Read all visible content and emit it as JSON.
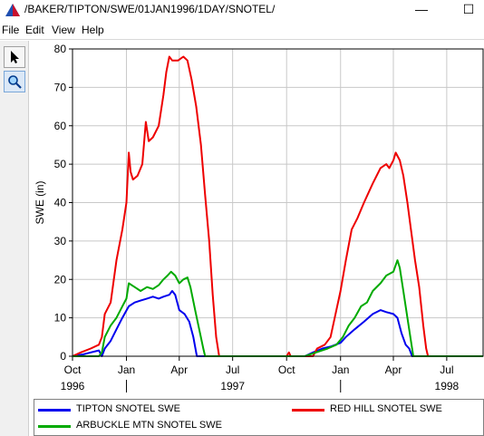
{
  "window": {
    "title": "/BAKER/TIPTON/SWE/01JAN1996/1DAY/SNOTEL/",
    "minimize_glyph": "—",
    "maximize_glyph": "☐"
  },
  "menu": [
    "File",
    "Edit",
    "View",
    "Help"
  ],
  "toolbar": {
    "tools": [
      {
        "icon": "pointer-arrow-icon",
        "active": false
      },
      {
        "icon": "zoom-magnifier-icon",
        "active": true
      }
    ]
  },
  "colors": {
    "tipton": "#0000ee",
    "red_hill": "#ee0000",
    "arbuckle": "#00aa00",
    "grid": "#c8c8c8"
  },
  "chart_data": {
    "type": "line",
    "ylabel": "SWE (in)",
    "ylim": [
      0,
      80
    ],
    "yticks": [
      0,
      10,
      20,
      30,
      40,
      50,
      60,
      70,
      80
    ],
    "xlim": [
      "1996-10-01",
      "1998-09-01"
    ],
    "x_major_ticks": [
      {
        "date": "1996-10-01",
        "label": "Oct"
      },
      {
        "date": "1997-01-01",
        "label": "Jan"
      },
      {
        "date": "1997-04-01",
        "label": "Apr"
      },
      {
        "date": "1997-07-01",
        "label": "Jul"
      },
      {
        "date": "1997-10-01",
        "label": "Oct"
      },
      {
        "date": "1998-01-01",
        "label": "Jan"
      },
      {
        "date": "1998-04-01",
        "label": "Apr"
      },
      {
        "date": "1998-07-01",
        "label": "Jul"
      }
    ],
    "x_year_labels": [
      {
        "date": "1996-10-01",
        "label": "1996"
      },
      {
        "date": "1997-07-01",
        "label": "1997"
      },
      {
        "date": "1998-07-01",
        "label": "1998"
      }
    ],
    "x_year_dividers": [
      "1997-01-01",
      "1998-01-01"
    ],
    "grid": true,
    "legend_position": "bottom",
    "series": [
      {
        "name": "TIPTON SNOTEL SWE",
        "color_key": "tipton",
        "points": [
          [
            "1996-10-01",
            0
          ],
          [
            "1996-10-20",
            0.5
          ],
          [
            "1996-11-01",
            1
          ],
          [
            "1996-11-15",
            1.5
          ],
          [
            "1996-11-20",
            0
          ],
          [
            "1996-11-25",
            2
          ],
          [
            "1996-12-05",
            4
          ],
          [
            "1996-12-15",
            7
          ],
          [
            "1996-12-25",
            10
          ],
          [
            "1997-01-05",
            13
          ],
          [
            "1997-01-15",
            14
          ],
          [
            "1997-01-25",
            14.5
          ],
          [
            "1997-02-05",
            15
          ],
          [
            "1997-02-15",
            15.5
          ],
          [
            "1997-02-25",
            15
          ],
          [
            "1997-03-05",
            15.5
          ],
          [
            "1997-03-15",
            16
          ],
          [
            "1997-03-20",
            17
          ],
          [
            "1997-03-25",
            16
          ],
          [
            "1997-04-01",
            12
          ],
          [
            "1997-04-10",
            11
          ],
          [
            "1997-04-18",
            9
          ],
          [
            "1997-04-25",
            5
          ],
          [
            "1997-05-01",
            0
          ],
          [
            "1997-10-25",
            0
          ],
          [
            "1997-11-01",
            0
          ],
          [
            "1997-11-15",
            1
          ],
          [
            "1997-12-01",
            2
          ],
          [
            "1997-12-15",
            2.5
          ],
          [
            "1998-01-01",
            3.5
          ],
          [
            "1998-01-10",
            5
          ],
          [
            "1998-01-25",
            7
          ],
          [
            "1998-02-10",
            9
          ],
          [
            "1998-02-25",
            11
          ],
          [
            "1998-03-10",
            12
          ],
          [
            "1998-03-20",
            11.5
          ],
          [
            "1998-04-01",
            11
          ],
          [
            "1998-04-08",
            10
          ],
          [
            "1998-04-15",
            6
          ],
          [
            "1998-04-22",
            3
          ],
          [
            "1998-04-28",
            2
          ],
          [
            "1998-05-03",
            0
          ],
          [
            "1998-09-01",
            0
          ]
        ]
      },
      {
        "name": "RED HILL SNOTEL SWE",
        "color_key": "red_hill",
        "points": [
          [
            "1996-10-01",
            0
          ],
          [
            "1996-10-15",
            1
          ],
          [
            "1996-11-01",
            2
          ],
          [
            "1996-11-15",
            3
          ],
          [
            "1996-11-20",
            5
          ],
          [
            "1996-11-25",
            11
          ],
          [
            "1996-12-05",
            14
          ],
          [
            "1996-12-15",
            25
          ],
          [
            "1996-12-25",
            33
          ],
          [
            "1997-01-01",
            40
          ],
          [
            "1997-01-05",
            53
          ],
          [
            "1997-01-08",
            48
          ],
          [
            "1997-01-12",
            46
          ],
          [
            "1997-01-20",
            47
          ],
          [
            "1997-01-28",
            50
          ],
          [
            "1997-02-03",
            61
          ],
          [
            "1997-02-08",
            56
          ],
          [
            "1997-02-15",
            57
          ],
          [
            "1997-02-25",
            60
          ],
          [
            "1997-03-05",
            68
          ],
          [
            "1997-03-10",
            74
          ],
          [
            "1997-03-15",
            78
          ],
          [
            "1997-03-20",
            77
          ],
          [
            "1997-03-30",
            77
          ],
          [
            "1997-04-08",
            78
          ],
          [
            "1997-04-15",
            77
          ],
          [
            "1997-04-22",
            72
          ],
          [
            "1997-04-30",
            65
          ],
          [
            "1997-05-08",
            55
          ],
          [
            "1997-05-15",
            42
          ],
          [
            "1997-05-22",
            30
          ],
          [
            "1997-05-28",
            16
          ],
          [
            "1997-06-03",
            5
          ],
          [
            "1997-06-08",
            0
          ],
          [
            "1997-10-01",
            0
          ],
          [
            "1997-10-05",
            1
          ],
          [
            "1997-10-08",
            0
          ],
          [
            "1997-11-15",
            0
          ],
          [
            "1997-11-22",
            2
          ],
          [
            "1997-12-05",
            3
          ],
          [
            "1997-12-15",
            5
          ],
          [
            "1997-12-22",
            10
          ],
          [
            "1998-01-01",
            17
          ],
          [
            "1998-01-10",
            25
          ],
          [
            "1998-01-20",
            33
          ],
          [
            "1998-01-30",
            36
          ],
          [
            "1998-02-10",
            40
          ],
          [
            "1998-02-25",
            45
          ],
          [
            "1998-03-10",
            49
          ],
          [
            "1998-03-20",
            50
          ],
          [
            "1998-03-25",
            49
          ],
          [
            "1998-04-01",
            51
          ],
          [
            "1998-04-05",
            53
          ],
          [
            "1998-04-12",
            51
          ],
          [
            "1998-04-18",
            47
          ],
          [
            "1998-04-25",
            40
          ],
          [
            "1998-05-01",
            33
          ],
          [
            "1998-05-08",
            25
          ],
          [
            "1998-05-15",
            18
          ],
          [
            "1998-05-22",
            8
          ],
          [
            "1998-05-27",
            2
          ],
          [
            "1998-05-30",
            0
          ],
          [
            "1998-09-01",
            0
          ]
        ]
      },
      {
        "name": "ARBUCKLE MTN SNOTEL SWE",
        "color_key": "arbuckle",
        "points": [
          [
            "1996-10-01",
            0
          ],
          [
            "1996-11-15",
            0
          ],
          [
            "1996-11-20",
            1
          ],
          [
            "1996-11-25",
            5
          ],
          [
            "1996-12-05",
            8
          ],
          [
            "1996-12-15",
            10
          ],
          [
            "1996-12-25",
            13
          ],
          [
            "1997-01-01",
            15
          ],
          [
            "1997-01-05",
            19
          ],
          [
            "1997-01-15",
            18
          ],
          [
            "1997-01-25",
            17
          ],
          [
            "1997-02-05",
            18
          ],
          [
            "1997-02-15",
            17.5
          ],
          [
            "1997-02-25",
            18.5
          ],
          [
            "1997-03-05",
            20
          ],
          [
            "1997-03-12",
            21
          ],
          [
            "1997-03-18",
            22
          ],
          [
            "1997-03-25",
            21
          ],
          [
            "1997-04-01",
            19
          ],
          [
            "1997-04-08",
            20
          ],
          [
            "1997-04-15",
            20.5
          ],
          [
            "1997-04-20",
            18
          ],
          [
            "1997-04-28",
            12
          ],
          [
            "1997-05-05",
            7
          ],
          [
            "1997-05-12",
            2
          ],
          [
            "1997-05-15",
            0
          ],
          [
            "1997-11-01",
            0
          ],
          [
            "1997-11-20",
            1
          ],
          [
            "1997-12-10",
            2
          ],
          [
            "1997-12-25",
            3
          ],
          [
            "1998-01-05",
            5
          ],
          [
            "1998-01-15",
            8
          ],
          [
            "1998-01-25",
            10
          ],
          [
            "1998-02-05",
            13
          ],
          [
            "1998-02-15",
            14
          ],
          [
            "1998-02-25",
            17
          ],
          [
            "1998-03-10",
            19
          ],
          [
            "1998-03-20",
            21
          ],
          [
            "1998-04-01",
            22
          ],
          [
            "1998-04-08",
            25
          ],
          [
            "1998-04-12",
            23
          ],
          [
            "1998-04-18",
            17
          ],
          [
            "1998-04-25",
            10
          ],
          [
            "1998-05-01",
            4
          ],
          [
            "1998-05-05",
            0
          ],
          [
            "1998-09-01",
            0
          ]
        ]
      }
    ]
  },
  "legend": [
    {
      "label": "TIPTON SNOTEL SWE",
      "color_key": "tipton"
    },
    {
      "label": "RED HILL SNOTEL SWE",
      "color_key": "red_hill"
    },
    {
      "label": "ARBUCKLE MTN SNOTEL SWE",
      "color_key": "arbuckle"
    }
  ]
}
